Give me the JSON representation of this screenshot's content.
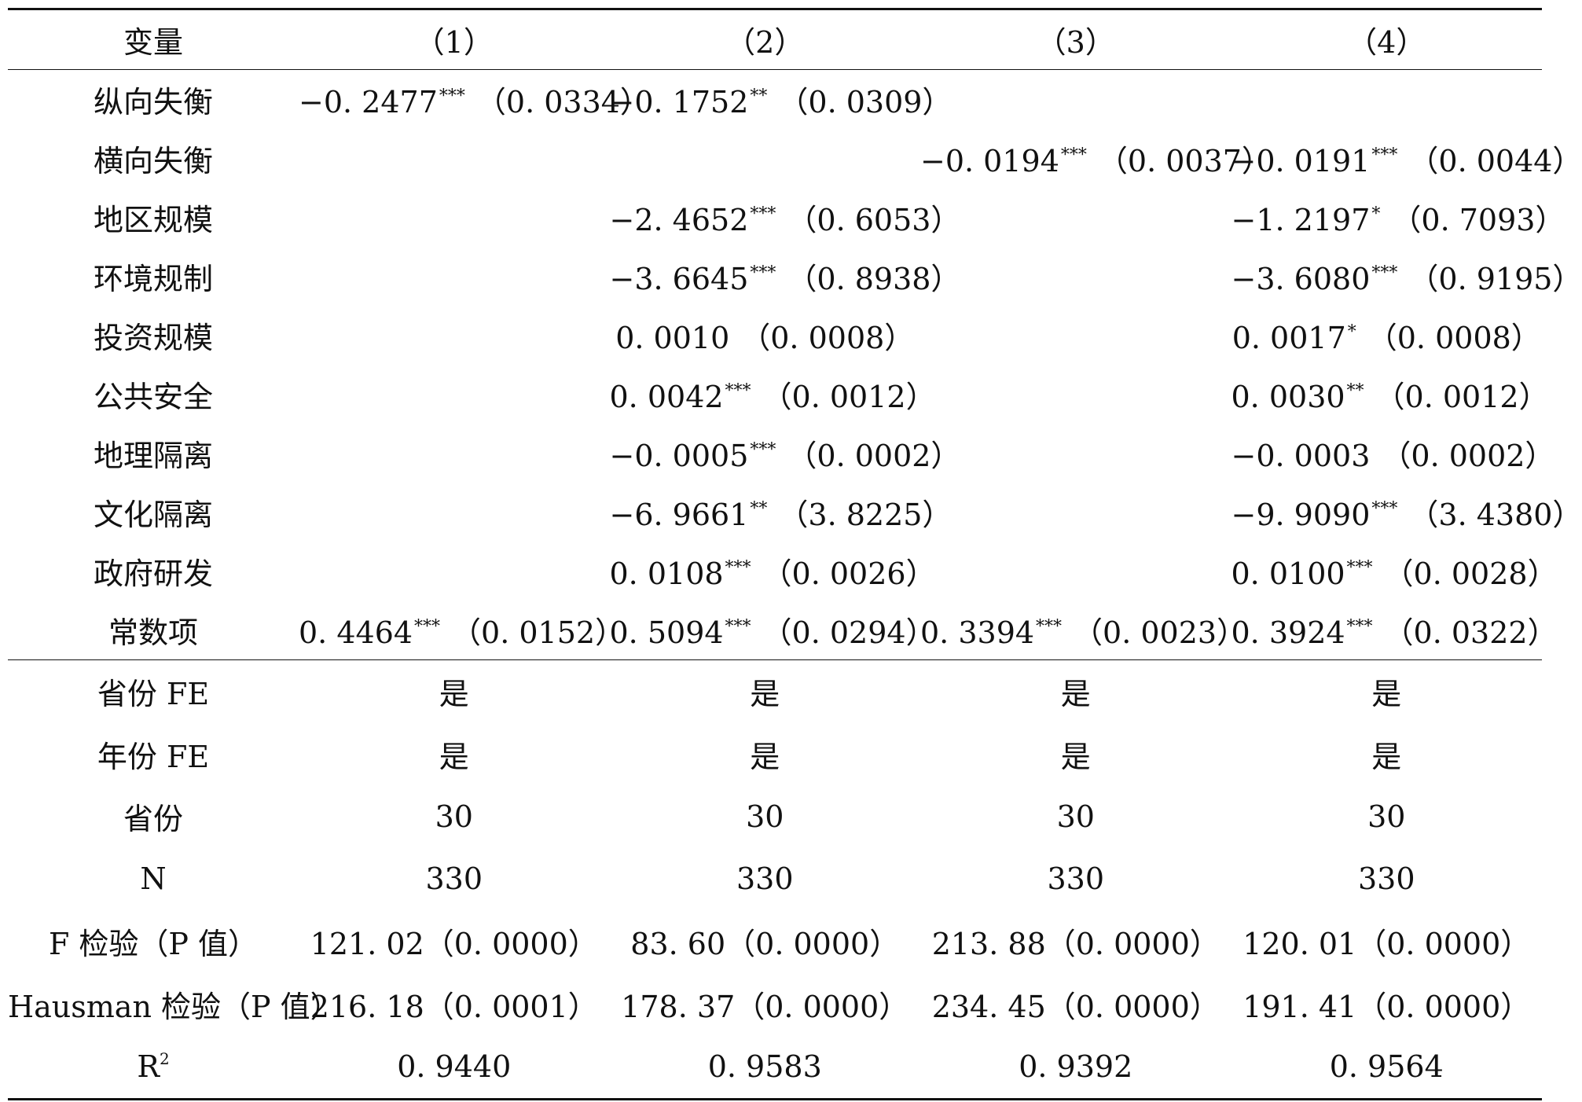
{
  "table": {
    "header": [
      "变量",
      "（1）",
      "（2）",
      "（3）",
      "（4）"
    ],
    "coefficient_rows": [
      {
        "label": "纵向失衡",
        "cells": [
          {
            "coef": "−0. 2477",
            "stars": "***",
            "se": "（0. 0334）"
          },
          {
            "coef": "−0. 1752",
            "stars": "**",
            "se": "（0. 0309）"
          },
          {
            "coef": "",
            "stars": "",
            "se": ""
          },
          {
            "coef": "",
            "stars": "",
            "se": ""
          }
        ]
      },
      {
        "label": "横向失衡",
        "cells": [
          {
            "coef": "",
            "stars": "",
            "se": ""
          },
          {
            "coef": "",
            "stars": "",
            "se": ""
          },
          {
            "coef": "−0. 0194",
            "stars": "***",
            "se": "（0. 0037）"
          },
          {
            "coef": "−0. 0191",
            "stars": "***",
            "se": "（0. 0044）"
          }
        ]
      },
      {
        "label": "地区规模",
        "cells": [
          {
            "coef": "",
            "stars": "",
            "se": ""
          },
          {
            "coef": "−2. 4652",
            "stars": "***",
            "se": "（0. 6053）"
          },
          {
            "coef": "",
            "stars": "",
            "se": ""
          },
          {
            "coef": "−1. 2197",
            "stars": "*",
            "se": "（0. 7093）"
          }
        ]
      },
      {
        "label": "环境规制",
        "cells": [
          {
            "coef": "",
            "stars": "",
            "se": ""
          },
          {
            "coef": "−3. 6645",
            "stars": "***",
            "se": "（0. 8938）"
          },
          {
            "coef": "",
            "stars": "",
            "se": ""
          },
          {
            "coef": "−3. 6080",
            "stars": "***",
            "se": "（0. 9195）"
          }
        ]
      },
      {
        "label": "投资规模",
        "cells": [
          {
            "coef": "",
            "stars": "",
            "se": ""
          },
          {
            "coef": "0. 0010",
            "stars": "",
            "se": "（0. 0008）"
          },
          {
            "coef": "",
            "stars": "",
            "se": ""
          },
          {
            "coef": "0. 0017",
            "stars": "*",
            "se": "（0. 0008）"
          }
        ]
      },
      {
        "label": "公共安全",
        "cells": [
          {
            "coef": "",
            "stars": "",
            "se": ""
          },
          {
            "coef": "0. 0042",
            "stars": "***",
            "se": "（0. 0012）"
          },
          {
            "coef": "",
            "stars": "",
            "se": ""
          },
          {
            "coef": "0. 0030",
            "stars": "**",
            "se": "（0. 0012）"
          }
        ]
      },
      {
        "label": "地理隔离",
        "cells": [
          {
            "coef": "",
            "stars": "",
            "se": ""
          },
          {
            "coef": "−0. 0005",
            "stars": "***",
            "se": "（0. 0002）"
          },
          {
            "coef": "",
            "stars": "",
            "se": ""
          },
          {
            "coef": "−0. 0003",
            "stars": "",
            "se": "（0. 0002）"
          }
        ]
      },
      {
        "label": "文化隔离",
        "cells": [
          {
            "coef": "",
            "stars": "",
            "se": ""
          },
          {
            "coef": "−6. 9661",
            "stars": "**",
            "se": "（3. 8225）"
          },
          {
            "coef": "",
            "stars": "",
            "se": ""
          },
          {
            "coef": "−9. 9090",
            "stars": "***",
            "se": "（3. 4380）"
          }
        ]
      },
      {
        "label": "政府研发",
        "cells": [
          {
            "coef": "",
            "stars": "",
            "se": ""
          },
          {
            "coef": "0. 0108",
            "stars": "***",
            "se": "（0. 0026）"
          },
          {
            "coef": "",
            "stars": "",
            "se": ""
          },
          {
            "coef": "0. 0100",
            "stars": "***",
            "se": "（0. 0028）"
          }
        ]
      },
      {
        "label": "常数项",
        "cells": [
          {
            "coef": "0. 4464",
            "stars": "***",
            "se": "（0. 0152）"
          },
          {
            "coef": "0. 5094",
            "stars": "***",
            "se": "（0. 0294）"
          },
          {
            "coef": "0. 3394",
            "stars": "***",
            "se": "（0. 0023）"
          },
          {
            "coef": "0. 3924",
            "stars": "***",
            "se": "（0. 0322）"
          }
        ]
      }
    ],
    "stat_rows": [
      {
        "label": "省份 FE",
        "values": [
          "是",
          "是",
          "是",
          "是"
        ]
      },
      {
        "label": "年份 FE",
        "values": [
          "是",
          "是",
          "是",
          "是"
        ]
      },
      {
        "label": "省份",
        "values": [
          "30",
          "30",
          "30",
          "30"
        ]
      },
      {
        "label": "N",
        "values": [
          "330",
          "330",
          "330",
          "330"
        ]
      },
      {
        "label": "F 检验（P 值）",
        "values": [
          "121. 02（0. 0000）",
          "83. 60（0. 0000）",
          "213. 88（0. 0000）",
          "120. 01（0. 0000）"
        ]
      },
      {
        "label": "Hausman 检验（P 值）",
        "values": [
          "216. 18（0. 0001）",
          "178. 37（0. 0000）",
          "234. 45（0. 0000）",
          "191. 41（0. 0000）"
        ]
      }
    ],
    "r2_row": {
      "label_base": "R",
      "label_sup": "2",
      "values": [
        "0. 9440",
        "0. 9583",
        "0. 9392",
        "0. 9564"
      ]
    }
  }
}
